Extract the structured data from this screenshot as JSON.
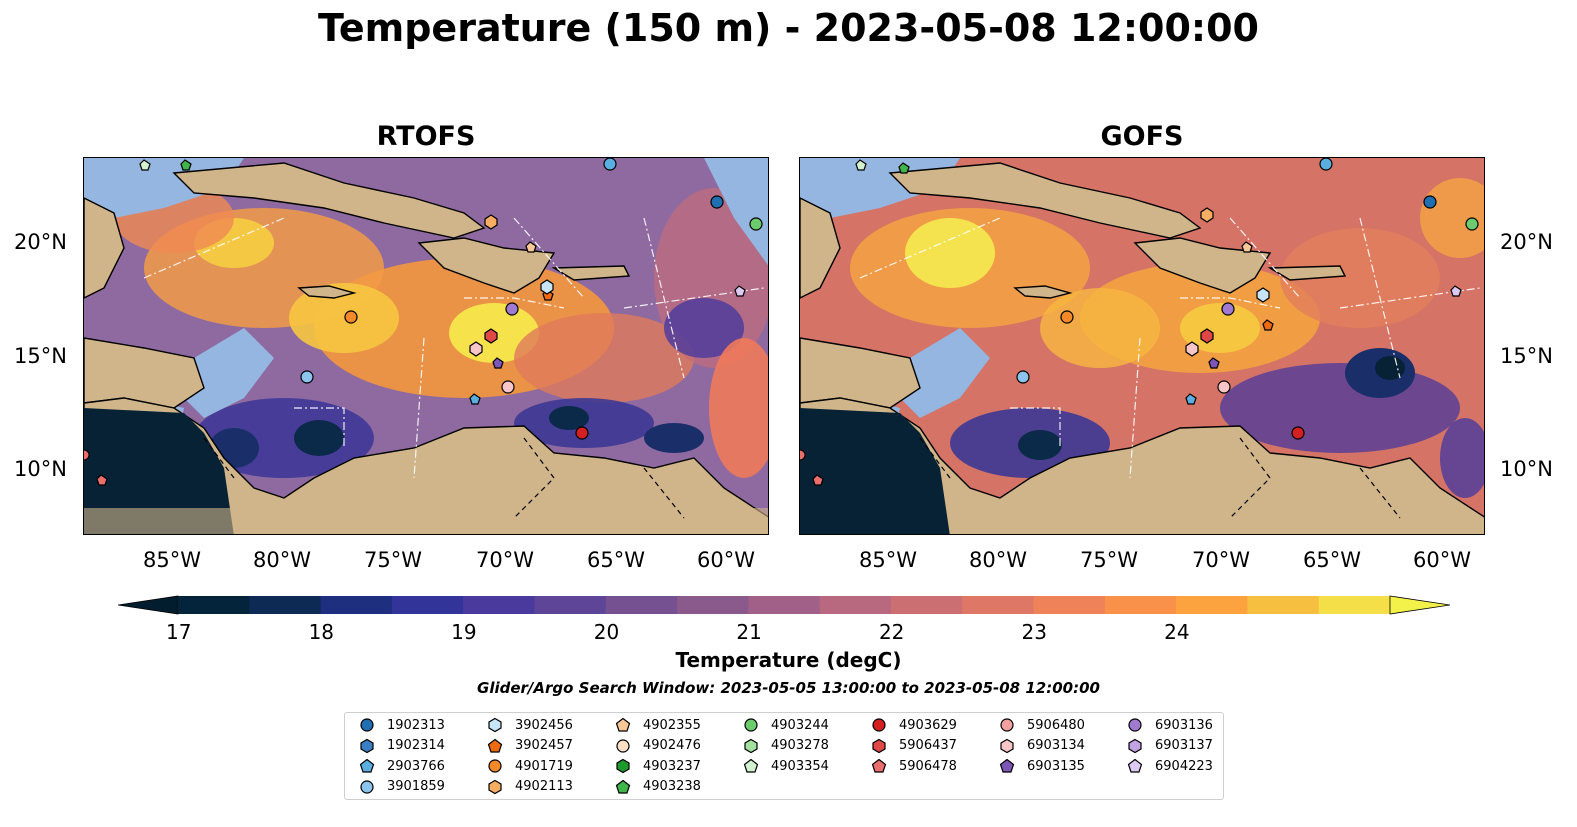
{
  "title": "Temperature (150 m) - 2023-05-08 12:00:00",
  "panels": [
    {
      "title": "RTOFS"
    },
    {
      "title": "GOFS"
    }
  ],
  "lat_labels": [
    "20°N",
    "15°N",
    "10°N"
  ],
  "lon_labels": [
    "85°W",
    "80°W",
    "75°W",
    "70°W",
    "65°W",
    "60°W"
  ],
  "colorbar": {
    "label": "Temperature (degC)",
    "ticks": [
      "17",
      "18",
      "19",
      "20",
      "21",
      "22",
      "23",
      "24"
    ],
    "colors": [
      "#03243a",
      "#0d2a55",
      "#1f2f80",
      "#33349a",
      "#4a3a9e",
      "#5e4598",
      "#755192",
      "#8a5a8c",
      "#a06088",
      "#b8687f",
      "#cc6f73",
      "#de7766",
      "#ef8258",
      "#f9914a",
      "#fca340",
      "#f7bf3f",
      "#f5df48"
    ],
    "under_color": "#021d2e",
    "over_color": "#f2f24a"
  },
  "search_window": "Glider/Argo Search Window: 2023-05-05 13:00:00 to 2023-05-08 12:00:00",
  "legend": [
    {
      "id": "1902313",
      "marker": "circle",
      "color": "#1f6fb2"
    },
    {
      "id": "1902314",
      "marker": "hexagon",
      "color": "#3a7fc4"
    },
    {
      "id": "2903766",
      "marker": "pentagon",
      "color": "#5aaee0"
    },
    {
      "id": "3901859",
      "marker": "circle",
      "color": "#8cc4ee"
    },
    {
      "id": "3902456",
      "marker": "hexagon",
      "color": "#c8e4f7"
    },
    {
      "id": "3902457",
      "marker": "pentagon",
      "color": "#f06a10"
    },
    {
      "id": "4901719",
      "marker": "circle",
      "color": "#f4892a"
    },
    {
      "id": "4902113",
      "marker": "hexagon",
      "color": "#f7ad62"
    },
    {
      "id": "4902355",
      "marker": "pentagon",
      "color": "#f8c896"
    },
    {
      "id": "4902476",
      "marker": "circle",
      "color": "#fbe0c6"
    },
    {
      "id": "4903237",
      "marker": "hexagon",
      "color": "#1e9a2c"
    },
    {
      "id": "4903238",
      "marker": "pentagon",
      "color": "#3fb54a"
    },
    {
      "id": "4903244",
      "marker": "circle",
      "color": "#6ccb6c"
    },
    {
      "id": "4903278",
      "marker": "hexagon",
      "color": "#a4e0a0"
    },
    {
      "id": "4903354",
      "marker": "pentagon",
      "color": "#d2f2cf"
    },
    {
      "id": "4903629",
      "marker": "circle",
      "color": "#d42020"
    },
    {
      "id": "5906437",
      "marker": "hexagon",
      "color": "#e04848"
    },
    {
      "id": "5906478",
      "marker": "pentagon",
      "color": "#ea6e6e"
    },
    {
      "id": "5906480",
      "marker": "circle",
      "color": "#f2a0a0"
    },
    {
      "id": "6903134",
      "marker": "hexagon",
      "color": "#f8c6c6"
    },
    {
      "id": "6903135",
      "marker": "pentagon",
      "color": "#7e56b8"
    },
    {
      "id": "6903136",
      "marker": "circle",
      "color": "#a07ad0"
    },
    {
      "id": "6903137",
      "marker": "hexagon",
      "color": "#c1a2e2"
    },
    {
      "id": "6904223",
      "marker": "pentagon",
      "color": "#dccaf2"
    }
  ]
}
